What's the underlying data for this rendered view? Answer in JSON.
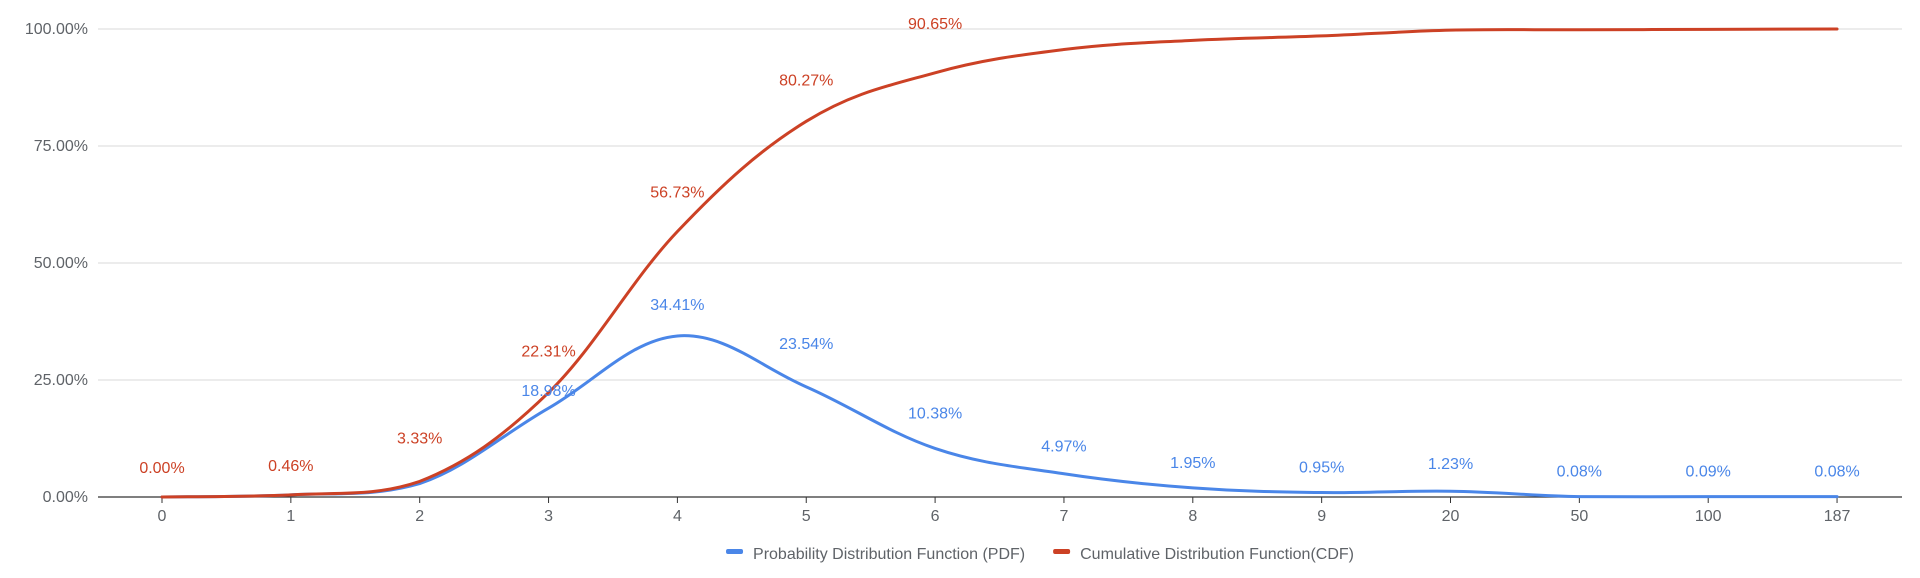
{
  "chart_data": {
    "type": "line",
    "title": "",
    "xlabel": "",
    "ylabel": "",
    "ylim": [
      0,
      100
    ],
    "y_ticks": [
      "0.00%",
      "25.00%",
      "50.00%",
      "75.00%",
      "100.00%"
    ],
    "y_tick_values": [
      0,
      25,
      50,
      75,
      100
    ],
    "categories": [
      "0",
      "1",
      "2",
      "3",
      "4",
      "5",
      "6",
      "7",
      "8",
      "9",
      "20",
      "50",
      "100",
      "187"
    ],
    "grid": true,
    "legend_position": "bottom",
    "series": [
      {
        "name": "Probability Distribution Function (PDF)",
        "color": "#4a86e8",
        "values": [
          0.0,
          0.46,
          2.87,
          18.98,
          34.41,
          23.54,
          10.38,
          4.97,
          1.95,
          0.95,
          1.23,
          0.08,
          0.09,
          0.08
        ],
        "labels": [
          "",
          "",
          "",
          "18.98%",
          "34.41%",
          "23.54%",
          "10.38%",
          "4.97%",
          "1.95%",
          "0.95%",
          "1.23%",
          "0.08%",
          "0.09%",
          "0.08%"
        ]
      },
      {
        "name": "Cumulative Distribution Function(CDF)",
        "color": "#cc4125",
        "values": [
          0.0,
          0.46,
          3.33,
          22.31,
          56.73,
          80.27,
          90.65,
          95.62,
          97.57,
          98.52,
          99.75,
          99.83,
          99.92,
          100.0
        ],
        "labels": [
          "0.00%",
          "0.46%",
          "3.33%",
          "22.31%",
          "56.73%",
          "80.27%",
          "90.65%",
          "",
          "",
          "",
          "",
          "",
          "",
          ""
        ]
      }
    ]
  }
}
